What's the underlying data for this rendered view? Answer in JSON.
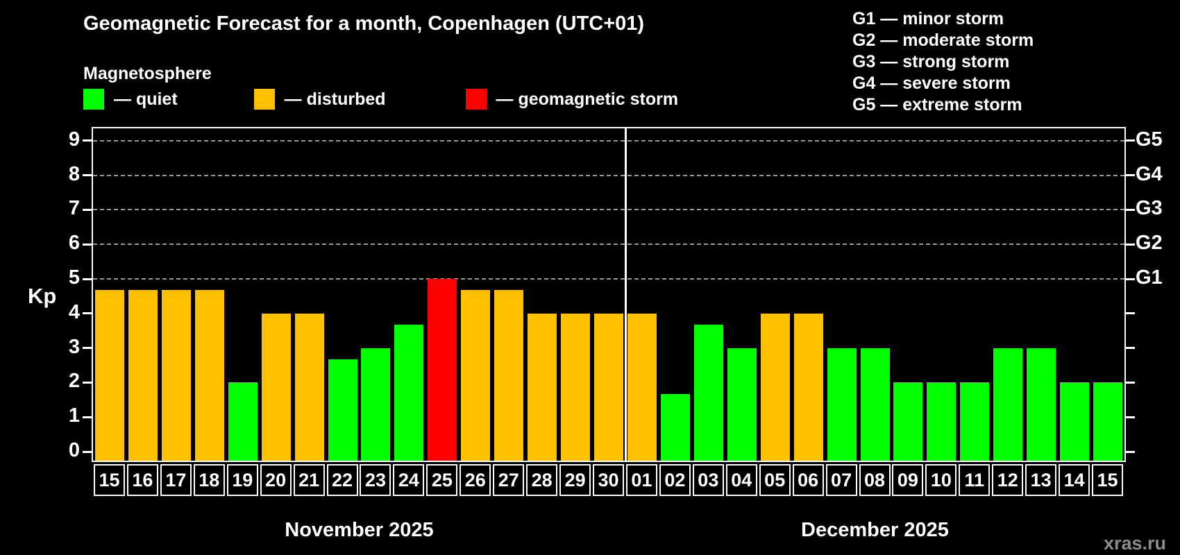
{
  "title": "Geomagnetic Forecast for a month, Copenhagen (UTC+01)",
  "subtitle": "Magnetosphere",
  "watermark": "xras.ru",
  "legend": [
    {
      "status": "quiet",
      "label": "— quiet"
    },
    {
      "status": "disturbed",
      "label": "— disturbed"
    },
    {
      "status": "storm",
      "label": "— geomagnetic storm"
    }
  ],
  "storm_scale": [
    "G1 — minor storm",
    "G2 — moderate storm",
    "G3 — strong storm",
    "G4 — severe storm",
    "G5 — extreme storm"
  ],
  "colors": {
    "quiet": "#00ff00",
    "disturbed": "#ffc000",
    "storm": "#ff0000",
    "grid": "#999999",
    "axis": "#ffffff",
    "background": "#000000",
    "watermark": "#8c8c8c"
  },
  "chart_data": {
    "type": "bar",
    "ylabel": "Kp",
    "ylim": [
      0,
      9.4
    ],
    "yticks": [
      0,
      1,
      2,
      3,
      4,
      5,
      6,
      7,
      8,
      9
    ],
    "grid_levels": [
      5,
      6,
      7,
      8,
      9
    ],
    "grid_style": "dashed",
    "legend_position": "top-left",
    "right_axis_labels": {
      "5": "G1",
      "6": "G2",
      "7": "G3",
      "8": "G4",
      "9": "G5"
    },
    "months": [
      {
        "label": "November 2025",
        "start_index": 0,
        "count": 16
      },
      {
        "label": "December 2025",
        "start_index": 16,
        "count": 15
      }
    ],
    "categories": [
      "15",
      "16",
      "17",
      "18",
      "19",
      "20",
      "21",
      "22",
      "23",
      "24",
      "25",
      "26",
      "27",
      "28",
      "29",
      "30",
      "01",
      "02",
      "03",
      "04",
      "05",
      "06",
      "07",
      "08",
      "09",
      "10",
      "11",
      "12",
      "13",
      "14",
      "15"
    ],
    "values": [
      4.67,
      4.67,
      4.67,
      4.67,
      2.0,
      4.0,
      4.0,
      2.67,
      3.0,
      3.67,
      5.0,
      4.67,
      4.67,
      4.0,
      4.0,
      4.0,
      4.0,
      1.67,
      3.67,
      3.0,
      4.0,
      4.0,
      3.0,
      3.0,
      2.0,
      2.0,
      2.0,
      3.0,
      3.0,
      2.0,
      2.0
    ],
    "statuses": [
      "disturbed",
      "disturbed",
      "disturbed",
      "disturbed",
      "quiet",
      "disturbed",
      "disturbed",
      "quiet",
      "quiet",
      "quiet",
      "storm",
      "disturbed",
      "disturbed",
      "disturbed",
      "disturbed",
      "disturbed",
      "disturbed",
      "quiet",
      "quiet",
      "quiet",
      "disturbed",
      "disturbed",
      "quiet",
      "quiet",
      "quiet",
      "quiet",
      "quiet",
      "quiet",
      "quiet",
      "quiet",
      "quiet"
    ]
  }
}
